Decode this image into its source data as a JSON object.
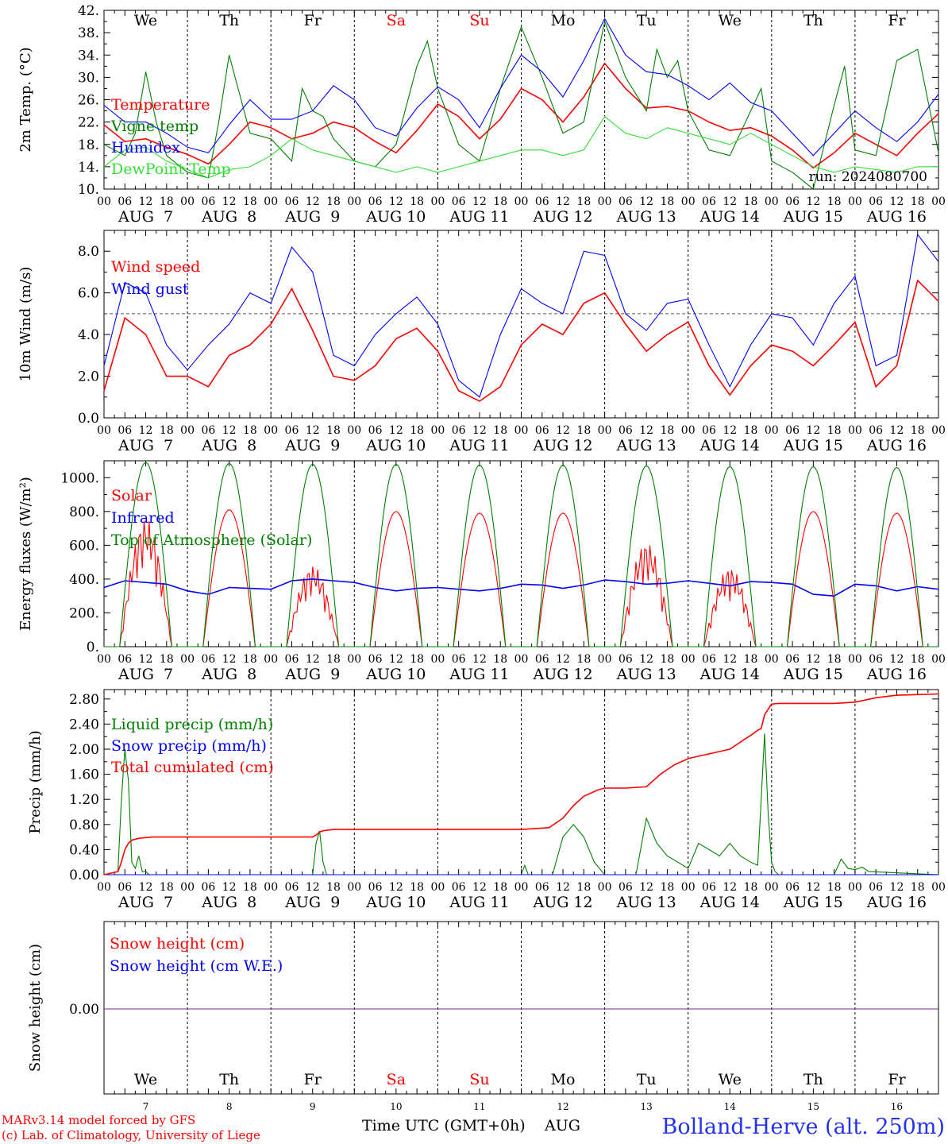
{
  "run_label": "run: 2024080700",
  "footer": {
    "credit_line1": "MARv3.14 model forced by GFS",
    "credit_line2": "(c) Lab. of Climatology, University of Liege",
    "axis_title": "Time UTC (GMT+0h)",
    "month": "AUG",
    "station": "Bolland-Herve (alt. 250m)"
  },
  "colors": {
    "red": "#ff0000",
    "blue": "#0000ff",
    "green": "#008000",
    "lightgreen": "#33dd33",
    "purple": "#7a2a9a",
    "weekend": "#ff0000"
  },
  "days": {
    "weekday_labels": [
      "We",
      "Th",
      "Fr",
      "Sa",
      "Su",
      "Mo",
      "Tu",
      "We",
      "Th",
      "Fr"
    ],
    "weekend_flags": [
      false,
      false,
      false,
      true,
      true,
      false,
      false,
      false,
      false,
      false
    ],
    "date_labels": [
      "AUG  7",
      "AUG  8",
      "AUG  9",
      "AUG 10",
      "AUG 11",
      "AUG 12",
      "AUG 13",
      "AUG 14",
      "AUG 15",
      "AUG 16"
    ],
    "day_numbers": [
      "7",
      "8",
      "9",
      "10",
      "11",
      "12",
      "13",
      "14",
      "15",
      "16"
    ],
    "hour_labels": [
      "00",
      "06",
      "12",
      "18"
    ],
    "final_hour_label": "00"
  },
  "chart_data": [
    {
      "type": "line",
      "ylabel": "2m Temp. (°C)",
      "ylim": [
        10,
        42
      ],
      "yticks": [
        10,
        14,
        18,
        22,
        26,
        30,
        34,
        38,
        42
      ],
      "ytick_labels": [
        "10.",
        "14.",
        "18.",
        "22.",
        "26.",
        "30.",
        "34.",
        "38.",
        "42."
      ],
      "x_unit": "hours since AUG 7 00 UTC",
      "xlim": [
        0,
        240
      ],
      "series": [
        {
          "name": "Temperature",
          "color": "#ff0000",
          "x": [
            0,
            6,
            12,
            18,
            24,
            30,
            36,
            42,
            48,
            54,
            60,
            66,
            72,
            78,
            84,
            90,
            96,
            102,
            108,
            114,
            120,
            126,
            132,
            138,
            144,
            150,
            156,
            162,
            168,
            174,
            180,
            186,
            192,
            198,
            204,
            210,
            216,
            222,
            228,
            234,
            240
          ],
          "y": [
            21.5,
            18.5,
            19,
            17.5,
            16.2,
            14.5,
            18,
            22,
            21,
            19,
            20,
            22,
            21,
            18.5,
            16.5,
            20.5,
            25.2,
            23,
            19,
            22.5,
            28,
            26,
            22,
            26.5,
            32.5,
            28,
            24.5,
            24.8,
            24,
            22,
            20.5,
            21,
            19.5,
            17,
            13.8,
            16.5,
            20,
            18,
            16,
            20,
            23.5
          ]
        },
        {
          "name": "Vigne temp",
          "color": "#008000",
          "x": [
            0,
            6,
            9,
            12,
            15,
            18,
            24,
            30,
            33,
            36,
            39,
            42,
            48,
            54,
            57,
            60,
            63,
            66,
            72,
            78,
            84,
            90,
            93,
            96,
            102,
            108,
            114,
            120,
            126,
            132,
            138,
            144,
            150,
            156,
            159,
            162,
            165,
            168,
            174,
            180,
            186,
            189,
            192,
            198,
            204,
            210,
            213,
            216,
            222,
            228,
            234,
            240
          ],
          "y": [
            18,
            16,
            20,
            31,
            22,
            16,
            13,
            12,
            22,
            34,
            27,
            20,
            19,
            15,
            28,
            24,
            23,
            19,
            15,
            14,
            18,
            32,
            36.5,
            28,
            18,
            15,
            28,
            39,
            30,
            20,
            22,
            40,
            30,
            24,
            35,
            30,
            33,
            24,
            17,
            16,
            24,
            28,
            15,
            13,
            10,
            25,
            32,
            17,
            16,
            33,
            35,
            16.5
          ]
        },
        {
          "name": "Humidex",
          "color": "#0000ff",
          "x": [
            0,
            6,
            12,
            18,
            24,
            30,
            36,
            42,
            48,
            54,
            60,
            66,
            72,
            78,
            84,
            90,
            96,
            102,
            108,
            114,
            120,
            126,
            132,
            138,
            144,
            150,
            156,
            162,
            168,
            174,
            180,
            186,
            192,
            198,
            204,
            210,
            216,
            222,
            228,
            234,
            240
          ],
          "y": [
            25,
            22,
            22,
            20,
            17.5,
            16.5,
            21.5,
            26,
            22.5,
            22.5,
            24,
            28.5,
            26,
            21,
            19.5,
            24.5,
            28.3,
            26,
            21,
            28,
            34,
            31,
            26.5,
            33,
            40.5,
            34,
            31,
            30.5,
            28.5,
            26,
            29,
            25.5,
            24,
            20,
            16,
            20,
            24,
            21,
            18.5,
            22,
            27
          ]
        },
        {
          "name": "DewPoint Temp",
          "color": "#33dd33",
          "x": [
            0,
            6,
            12,
            18,
            24,
            30,
            36,
            42,
            48,
            54,
            60,
            66,
            72,
            78,
            84,
            90,
            96,
            102,
            108,
            114,
            120,
            126,
            132,
            138,
            144,
            150,
            156,
            162,
            168,
            174,
            180,
            186,
            192,
            198,
            204,
            210,
            216,
            222,
            228,
            234,
            240
          ],
          "y": [
            14,
            17,
            17.5,
            15,
            13.5,
            12,
            13.5,
            14,
            16,
            19,
            17,
            16,
            15,
            14,
            13,
            14,
            13,
            14,
            15,
            16,
            17,
            17,
            16,
            17,
            23,
            20,
            19,
            21,
            20,
            19,
            18,
            20,
            18,
            16,
            14,
            13,
            14,
            13.5,
            13,
            14,
            14
          ]
        }
      ]
    },
    {
      "type": "line",
      "ylabel": "10m Wind (m/s)",
      "ylim": [
        0,
        9
      ],
      "yticks": [
        0,
        2,
        4,
        6,
        8
      ],
      "ytick_labels": [
        "0.0",
        "2.0",
        "4.0",
        "6.0",
        "8.0"
      ],
      "reference_line": 5,
      "x_unit": "hours since AUG 7 00 UTC",
      "xlim": [
        0,
        240
      ],
      "series": [
        {
          "name": "Wind speed",
          "color": "#ff0000",
          "x": [
            0,
            6,
            12,
            18,
            24,
            30,
            36,
            42,
            48,
            54,
            60,
            66,
            72,
            78,
            84,
            90,
            96,
            102,
            108,
            114,
            120,
            126,
            132,
            138,
            144,
            150,
            156,
            162,
            168,
            174,
            180,
            186,
            192,
            198,
            204,
            210,
            216,
            222,
            228,
            234,
            240
          ],
          "y": [
            1.3,
            4.8,
            4,
            2,
            2,
            1.5,
            3,
            3.5,
            4.5,
            6.2,
            4.2,
            2,
            1.8,
            2.5,
            3.8,
            4.3,
            3.2,
            1.3,
            0.8,
            1.5,
            3.5,
            4.5,
            4,
            5.5,
            6,
            4.5,
            3.2,
            4,
            4.6,
            2.5,
            1.1,
            2.5,
            3.5,
            3.2,
            2.5,
            3.5,
            4.6,
            1.5,
            2.5,
            6.6,
            5.6
          ]
        },
        {
          "name": "Wind gust",
          "color": "#0000ff",
          "x": [
            0,
            6,
            12,
            18,
            24,
            30,
            36,
            42,
            48,
            54,
            60,
            66,
            72,
            78,
            84,
            90,
            96,
            102,
            108,
            114,
            120,
            126,
            132,
            138,
            144,
            150,
            156,
            162,
            168,
            174,
            180,
            186,
            192,
            198,
            204,
            210,
            216,
            222,
            228,
            234,
            240
          ],
          "y": [
            2.5,
            6.5,
            6,
            3.5,
            2.3,
            3.5,
            4.5,
            6,
            5.5,
            8.2,
            7,
            3,
            2.5,
            4,
            5,
            5.8,
            4.5,
            1.8,
            1,
            4,
            6.2,
            5.5,
            5,
            8,
            7.8,
            5,
            4.2,
            5.5,
            5.7,
            3.5,
            1.5,
            3.5,
            5,
            4.8,
            3.5,
            5.5,
            6.8,
            2.5,
            3,
            8.8,
            7.5
          ]
        }
      ]
    },
    {
      "type": "line",
      "ylabel": "Energy fluxes (W/m²)",
      "ylim": [
        0,
        1100
      ],
      "yticks": [
        0,
        200,
        400,
        600,
        800,
        1000
      ],
      "ytick_labels": [
        "0.",
        "200.",
        "400.",
        "600.",
        "800.",
        "1000."
      ],
      "x_unit": "hours since AUG 7 00 UTC",
      "xlim": [
        0,
        240
      ],
      "series": [
        {
          "name": "Solar",
          "color": "#ff0000",
          "daily_peak": [
            760,
            810,
            480,
            800,
            790,
            790,
            620,
            470,
            800,
            790
          ]
        },
        {
          "name": "Infrared",
          "color": "#0000ff",
          "x": [
            0,
            6,
            12,
            18,
            24,
            30,
            36,
            42,
            48,
            54,
            60,
            66,
            72,
            78,
            84,
            90,
            96,
            102,
            108,
            114,
            120,
            126,
            132,
            138,
            144,
            150,
            156,
            162,
            168,
            174,
            180,
            186,
            192,
            198,
            204,
            210,
            216,
            222,
            228,
            234,
            240
          ],
          "y": [
            350,
            390,
            380,
            370,
            330,
            310,
            350,
            345,
            340,
            390,
            400,
            390,
            380,
            350,
            330,
            345,
            350,
            340,
            330,
            345,
            370,
            365,
            345,
            365,
            395,
            385,
            370,
            375,
            390,
            375,
            360,
            385,
            380,
            370,
            310,
            300,
            370,
            360,
            330,
            355,
            340
          ]
        },
        {
          "name": "Top of Atmosphere (Solar)",
          "color": "#008000",
          "daily_peak": [
            1090,
            1085,
            1080,
            1080,
            1075,
            1075,
            1070,
            1065,
            1065,
            1060
          ]
        }
      ],
      "daylight_hours": [
        4.5,
        19.5
      ]
    },
    {
      "type": "line",
      "ylabel": "Precip (mm/h)",
      "ylim": [
        0,
        2.95
      ],
      "yticks": [
        0,
        0.4,
        0.8,
        1.2,
        1.6,
        2.0,
        2.4,
        2.8
      ],
      "ytick_labels": [
        "0.00",
        "0.40",
        "0.80",
        "1.20",
        "1.60",
        "2.00",
        "2.40",
        "2.80"
      ],
      "x_unit": "hours since AUG 7 00 UTC",
      "xlim": [
        0,
        240
      ],
      "series": [
        {
          "name": "Liquid precip (mm/h)",
          "color": "#008000",
          "x": [
            0,
            4,
            5,
            6,
            7,
            8,
            9,
            10,
            11,
            12,
            13,
            14,
            15,
            16,
            60,
            61,
            62,
            63,
            64,
            120,
            121,
            122,
            129,
            132,
            135,
            138,
            141,
            144,
            153,
            156,
            159,
            162,
            165,
            168,
            171,
            174,
            177,
            180,
            183,
            186,
            188,
            189,
            190,
            191,
            192,
            193,
            194,
            210,
            212,
            214,
            216,
            218,
            220,
            240
          ],
          "y": [
            0,
            0.05,
            1.2,
            2.0,
            1.5,
            0.2,
            0.1,
            0.3,
            0.05,
            0.05,
            0,
            0,
            0,
            0,
            0,
            0.5,
            0.7,
            0.2,
            0,
            0,
            0.15,
            0,
            0,
            0.6,
            0.8,
            0.6,
            0.2,
            0,
            0,
            0.9,
            0.5,
            0.3,
            0.2,
            0.1,
            0.5,
            0.4,
            0.3,
            0.5,
            0.3,
            0.2,
            0.15,
            1.2,
            2.25,
            1.0,
            0.2,
            0.05,
            0,
            0,
            0.25,
            0.1,
            0.08,
            0.12,
            0.05,
            0
          ]
        },
        {
          "name": "Snow precip (mm/h)",
          "color": "#0000ff",
          "x": [
            0,
            240
          ],
          "y": [
            0,
            0
          ]
        },
        {
          "name": "Total cumulated (cm)",
          "color": "#ff0000",
          "x": [
            0,
            4,
            5,
            6,
            7,
            8,
            10,
            14,
            24,
            48,
            60,
            61,
            62,
            63,
            66,
            72,
            96,
            120,
            128,
            132,
            135,
            138,
            142,
            144,
            150,
            156,
            160,
            164,
            168,
            172,
            176,
            180,
            184,
            186,
            188,
            189,
            190,
            192,
            194,
            210,
            216,
            222,
            228,
            234,
            240
          ],
          "y": [
            0,
            0.05,
            0.2,
            0.4,
            0.5,
            0.55,
            0.58,
            0.6,
            0.6,
            0.6,
            0.6,
            0.63,
            0.68,
            0.7,
            0.72,
            0.72,
            0.72,
            0.72,
            0.75,
            0.9,
            1.1,
            1.25,
            1.35,
            1.38,
            1.38,
            1.4,
            1.6,
            1.75,
            1.85,
            1.9,
            1.95,
            2.0,
            2.15,
            2.22,
            2.3,
            2.33,
            2.55,
            2.72,
            2.73,
            2.73,
            2.75,
            2.82,
            2.86,
            2.87,
            2.88
          ]
        }
      ]
    },
    {
      "type": "line",
      "ylabel": "Snow height (cm)",
      "ytick_labels": [
        "0.00"
      ],
      "x_unit": "hours since AUG 7 00 UTC",
      "xlim": [
        0,
        240
      ],
      "series": [
        {
          "name": "Snow height (cm)",
          "color": "#ff0000",
          "x": [
            0,
            240
          ],
          "y": [
            0,
            0
          ]
        },
        {
          "name": "Snow height (cm W.E.)",
          "color": "#0000ff",
          "x": [
            0,
            240
          ],
          "y": [
            0,
            0
          ]
        }
      ]
    }
  ]
}
